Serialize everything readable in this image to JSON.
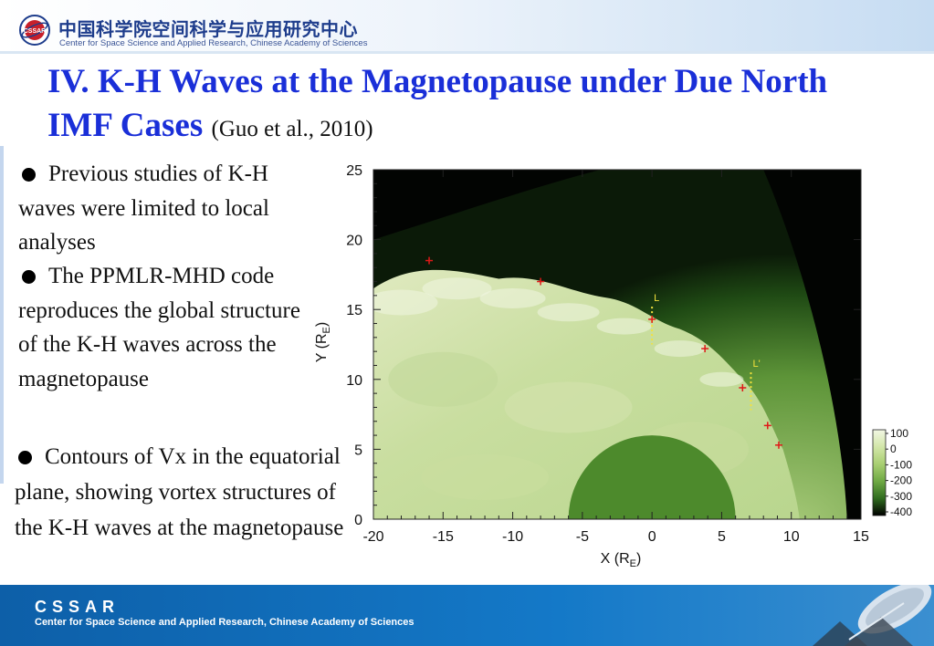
{
  "header": {
    "org_cn": "中国科学院空间科学与应用研究中心",
    "org_en": "Center for Space Science and Applied Research, Chinese Academy of Sciences",
    "logo_text": "CSSAR"
  },
  "title": {
    "main": "IV. K-H Waves at the Magnetopause under Due North IMF Cases",
    "citation": "(Guo et al., 2010)"
  },
  "bullets": [
    "Previous studies of K-H waves were limited to local analyses",
    "The PPMLR-MHD code reproduces the global structure of the K-H waves across the magnetopause",
    "Contours of Vx in the equatorial plane, showing vortex structures of the K-H waves at the magnetopause"
  ],
  "chart_data": {
    "type": "heatmap",
    "quantity": "Vx",
    "xlabel": "X (R",
    "xlabel_sub": "E",
    "ylabel": "Y (R",
    "ylabel_sub": "E",
    "xlim": [
      -20,
      15
    ],
    "ylim": [
      0,
      25
    ],
    "x_ticks": [
      -20,
      -15,
      -10,
      -5,
      0,
      5,
      10,
      15
    ],
    "y_ticks": [
      0,
      5,
      10,
      15,
      20,
      25
    ],
    "colorbar": {
      "ticks": [
        100,
        0,
        -100,
        -200,
        -300,
        -400
      ],
      "colors": [
        "#f2f7e4",
        "#d2e6a8",
        "#a9cf72",
        "#6fa944",
        "#2f6c1e",
        "#000000"
      ]
    },
    "markers": [
      {
        "x": -16,
        "y": 18.5
      },
      {
        "x": -8,
        "y": 17.0
      },
      {
        "x": 0,
        "y": 14.3
      },
      {
        "x": 3.8,
        "y": 12.2
      },
      {
        "x": 6.5,
        "y": 9.4
      },
      {
        "x": 8.3,
        "y": 6.7
      },
      {
        "x": 9.1,
        "y": 5.3
      }
    ],
    "lines": [
      {
        "label": "L",
        "x": 0,
        "y_range": [
          12.5,
          15.2
        ]
      },
      {
        "label": "L'",
        "x": 7.1,
        "y_range": [
          7.8,
          10.5
        ]
      }
    ]
  },
  "footer": {
    "logo": "CSSAR",
    "text": "Center for Space Science and Applied Research, Chinese Academy of Sciences"
  }
}
